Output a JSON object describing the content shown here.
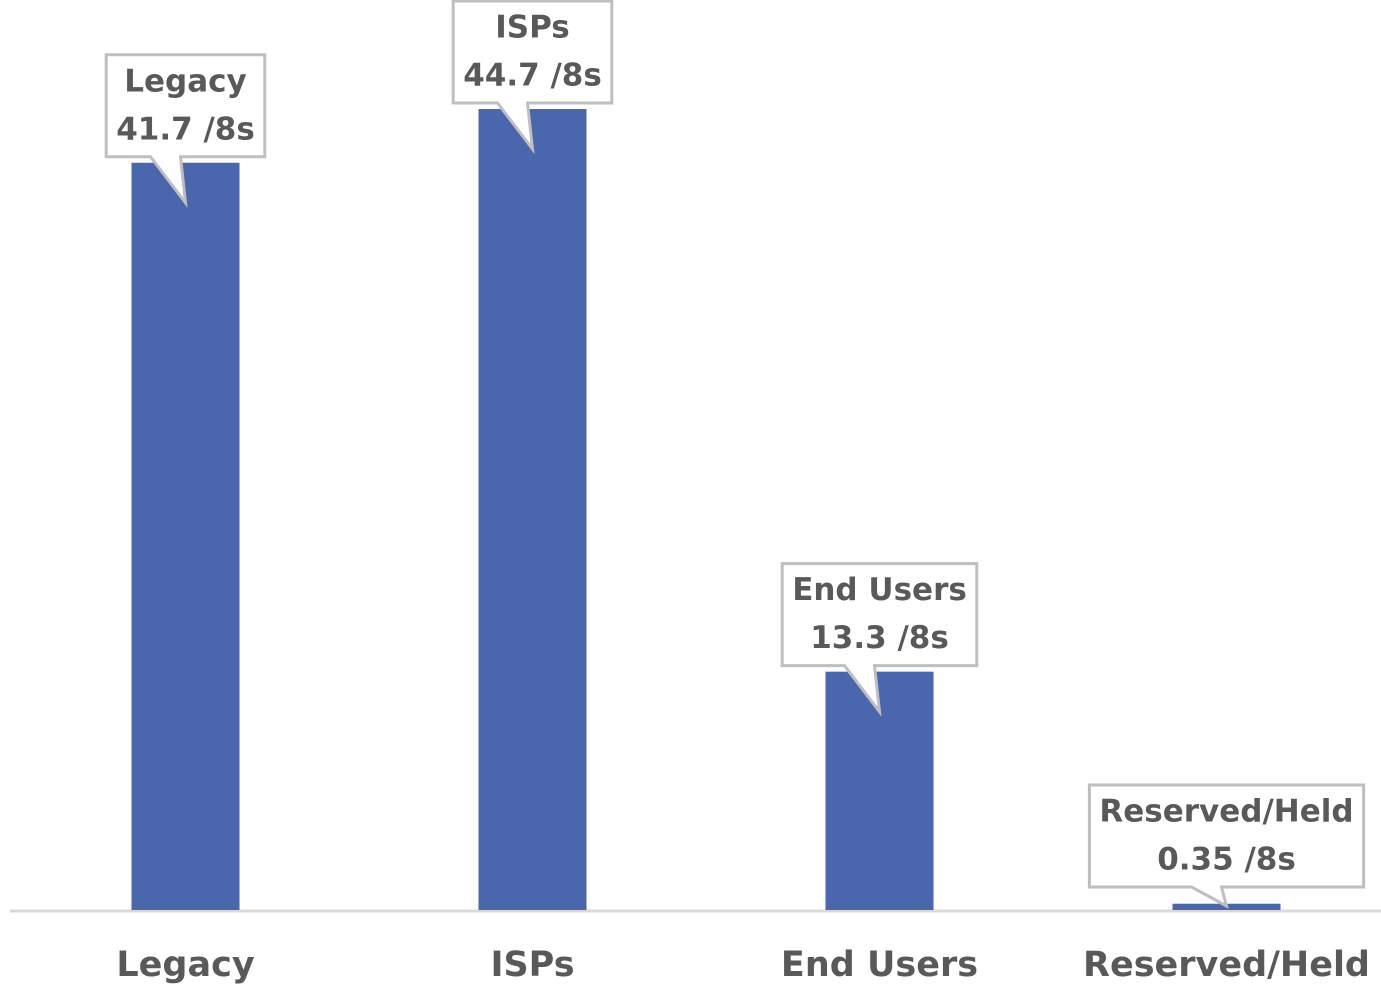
{
  "chart_data": {
    "type": "bar",
    "categories": [
      "Legacy",
      "ISPs",
      "End Users",
      "Reserved/Held"
    ],
    "values": [
      41.7,
      44.7,
      13.3,
      0.35
    ],
    "value_labels": [
      "41.7 /8s",
      "44.7 /8s",
      "13.3 /8s",
      "0.35 /8s"
    ],
    "color": "#4a66ac"
  }
}
